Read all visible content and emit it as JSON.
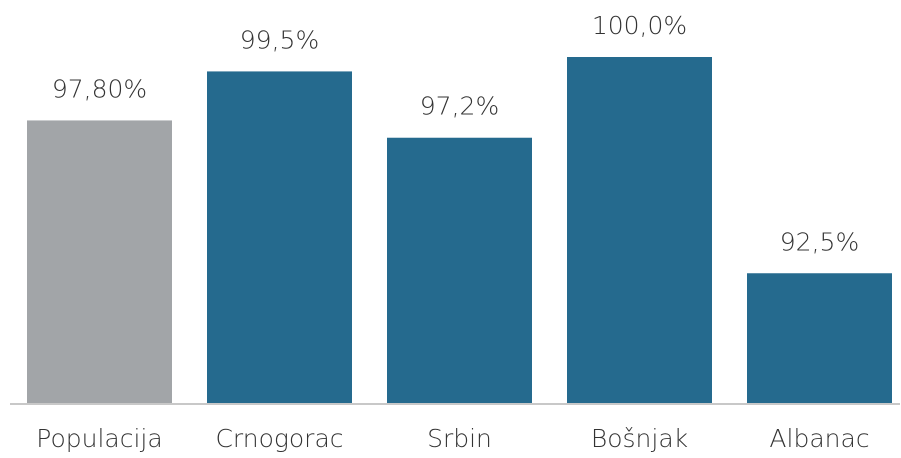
{
  "chart_data": {
    "type": "bar",
    "categories": [
      "Populacija",
      "Crnogorac",
      "Srbin",
      "Bošnjak",
      "Albanac"
    ],
    "values": [
      97.8,
      99.5,
      97.2,
      100.0,
      92.5
    ],
    "value_labels": [
      "97,80%",
      "99,5%",
      "97,2%",
      "100,0%",
      "92,5%"
    ],
    "colors": [
      "#a2a5a8",
      "#256a8e",
      "#256a8e",
      "#256a8e",
      "#256a8e"
    ],
    "ylim": [
      88,
      100
    ]
  }
}
